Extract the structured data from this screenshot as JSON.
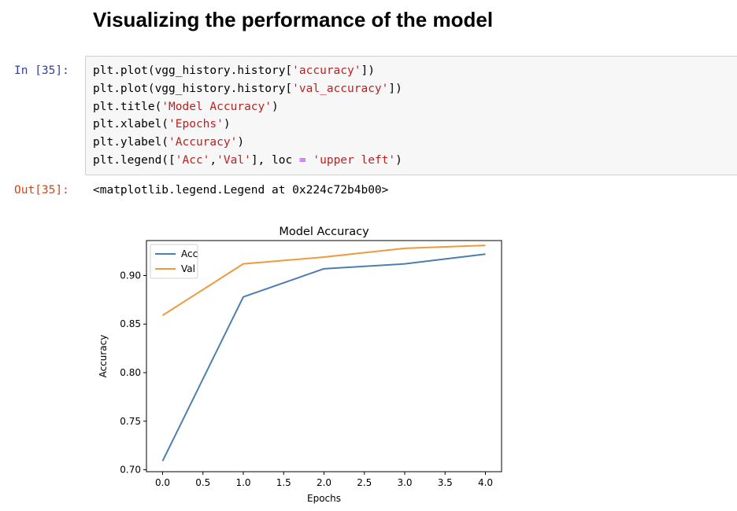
{
  "heading": "Visualizing the performance of the model",
  "input_cell": {
    "prompt": "In [35]:",
    "lines": [
      [
        {
          "t": "plt.plot(vgg_history.history["
        },
        {
          "t": "'accuracy'",
          "c": "s"
        },
        {
          "t": "])"
        }
      ],
      [
        {
          "t": "plt.plot(vgg_history.history["
        },
        {
          "t": "'val_accuracy'",
          "c": "s"
        },
        {
          "t": "])"
        }
      ],
      [
        {
          "t": "plt.title("
        },
        {
          "t": "'Model Accuracy'",
          "c": "s"
        },
        {
          "t": ")"
        }
      ],
      [
        {
          "t": "plt.xlabel("
        },
        {
          "t": "'Epochs'",
          "c": "s"
        },
        {
          "t": ")"
        }
      ],
      [
        {
          "t": "plt.ylabel("
        },
        {
          "t": "'Accuracy'",
          "c": "s"
        },
        {
          "t": ")"
        }
      ],
      [
        {
          "t": "plt.legend(["
        },
        {
          "t": "'Acc'",
          "c": "s"
        },
        {
          "t": ","
        },
        {
          "t": "'Val'",
          "c": "s"
        },
        {
          "t": "], loc "
        },
        {
          "t": "=",
          "c": "k"
        },
        {
          "t": " "
        },
        {
          "t": "'upper left'",
          "c": "s"
        },
        {
          "t": ")"
        }
      ]
    ]
  },
  "output_cell": {
    "prompt": "Out[35]:",
    "text": "<matplotlib.legend.Legend at 0x224c72b4b00>"
  },
  "chart_data": {
    "type": "line",
    "title": "Model Accuracy",
    "xlabel": "Epochs",
    "ylabel": "Accuracy",
    "x": [
      0,
      1,
      2,
      3,
      4
    ],
    "series": [
      {
        "name": "Acc",
        "color": "#4c7eb0",
        "values": [
          0.709,
          0.878,
          0.907,
          0.912,
          0.922
        ]
      },
      {
        "name": "Val",
        "color": "#f0993e",
        "values": [
          0.859,
          0.912,
          0.919,
          0.928,
          0.931
        ]
      }
    ],
    "xlim": [
      -0.2,
      4.2
    ],
    "ylim": [
      0.698,
      0.936
    ],
    "xticks": [
      0.0,
      0.5,
      1.0,
      1.5,
      2.0,
      2.5,
      3.0,
      3.5,
      4.0
    ],
    "xtick_labels": [
      "0.0",
      "0.5",
      "1.0",
      "1.5",
      "2.0",
      "2.5",
      "3.0",
      "3.5",
      "4.0"
    ],
    "yticks": [
      0.7,
      0.75,
      0.8,
      0.85,
      0.9
    ],
    "ytick_labels": [
      "0.70",
      "0.75",
      "0.80",
      "0.85",
      "0.90"
    ],
    "grid": false,
    "legend_position": "upper left"
  }
}
